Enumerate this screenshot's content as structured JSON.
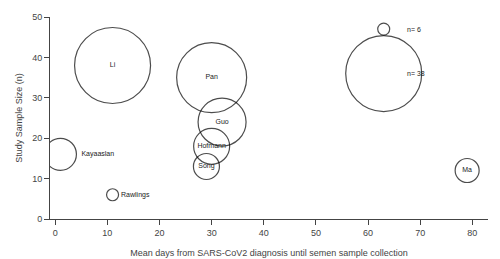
{
  "chart_data": {
    "type": "scatter",
    "x": [
      11,
      1,
      11,
      30,
      32,
      30,
      29,
      63,
      63,
      79
    ],
    "y": [
      38,
      16,
      6,
      35,
      24,
      18,
      13,
      47,
      36,
      12
    ],
    "size": [
      38,
      16,
      6,
      35,
      24,
      18,
      13,
      6,
      38,
      12
    ],
    "labels": [
      "Li",
      "Kayaaslan",
      "Rawlings",
      "Pan",
      "Guo",
      "Hofmann",
      "Song",
      null,
      null,
      "Ma"
    ],
    "annotations": [
      {
        "text": "n= 6",
        "x": 67,
        "y": 47
      },
      {
        "text": "n= 38",
        "x": 67,
        "y": 36
      }
    ],
    "xlabel": "Mean days from SARS-CoV2 diagnosis until semen sample collection",
    "ylabel": "Study Sample Size (n)",
    "xlim": [
      -1,
      83
    ],
    "ylim": [
      0,
      50
    ],
    "xticks": [
      0,
      10,
      20,
      30,
      40,
      50,
      60,
      70,
      80
    ],
    "yticks": [
      0,
      10,
      20,
      30,
      40,
      50
    ],
    "grid": false,
    "color": "black",
    "marker": "circle-open"
  }
}
